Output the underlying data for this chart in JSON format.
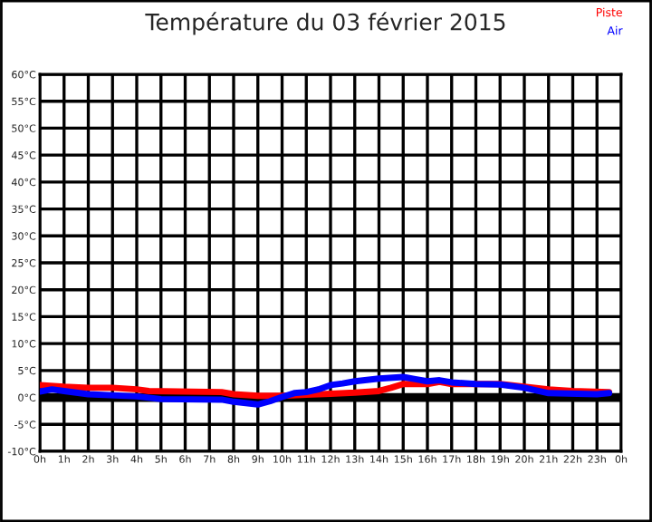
{
  "chart_data": {
    "type": "line",
    "title": "Température du 03 février 2015",
    "xlim": [
      "2015-02-03T00:00",
      "2015-02-04T00:00"
    ],
    "xticks": [
      {
        "value": "2015-02-03T00:00",
        "label": "0h"
      },
      {
        "value": "2015-02-03T01:00",
        "label": "1h"
      },
      {
        "value": "2015-02-03T02:00",
        "label": "2h"
      },
      {
        "value": "2015-02-03T03:00",
        "label": "3h"
      },
      {
        "value": "2015-02-03T04:00",
        "label": "4h"
      },
      {
        "value": "2015-02-03T05:00",
        "label": "5h"
      },
      {
        "value": "2015-02-03T06:00",
        "label": "6h"
      },
      {
        "value": "2015-02-03T07:00",
        "label": "7h"
      },
      {
        "value": "2015-02-03T08:00",
        "label": "8h"
      },
      {
        "value": "2015-02-03T09:00",
        "label": "9h"
      },
      {
        "value": "2015-02-03T10:00",
        "label": "10h"
      },
      {
        "value": "2015-02-03T11:00",
        "label": "11h"
      },
      {
        "value": "2015-02-03T12:00",
        "label": "12h"
      },
      {
        "value": "2015-02-03T13:00",
        "label": "13h"
      },
      {
        "value": "2015-02-03T14:00",
        "label": "14h"
      },
      {
        "value": "2015-02-03T15:00",
        "label": "15h"
      },
      {
        "value": "2015-02-03T16:00",
        "label": "16h"
      },
      {
        "value": "2015-02-03T17:00",
        "label": "17h"
      },
      {
        "value": "2015-02-03T18:00",
        "label": "18h"
      },
      {
        "value": "2015-02-03T19:00",
        "label": "19h"
      },
      {
        "value": "2015-02-03T20:00",
        "label": "20h"
      },
      {
        "value": "2015-02-03T21:00",
        "label": "21h"
      },
      {
        "value": "2015-02-03T22:00",
        "label": "22h"
      },
      {
        "value": "2015-02-03T23:00",
        "label": "23h"
      },
      {
        "value": "2015-02-04T00:00",
        "label": "0h"
      }
    ],
    "ylim": [
      -10,
      60
    ],
    "yticks": [
      {
        "value": -10,
        "label": "-10°C"
      },
      {
        "value": -5,
        "label": "-5°C"
      },
      {
        "value": 0,
        "label": "0°C"
      },
      {
        "value": 5,
        "label": "5°C"
      },
      {
        "value": 10,
        "label": "10°C"
      },
      {
        "value": 15,
        "label": "15°C"
      },
      {
        "value": 20,
        "label": "20°C"
      },
      {
        "value": 25,
        "label": "25°C"
      },
      {
        "value": 30,
        "label": "30°C"
      },
      {
        "value": 35,
        "label": "35°C"
      },
      {
        "value": 40,
        "label": "40°C"
      },
      {
        "value": 45,
        "label": "45°C"
      },
      {
        "value": 50,
        "label": "50°C"
      },
      {
        "value": 55,
        "label": "55°C"
      },
      {
        "value": 60,
        "label": "60°C"
      }
    ],
    "grid": true,
    "legend": "top right",
    "marker": "none",
    "line_style": "solid",
    "ref_lines": [
      {
        "axis": "y",
        "value": 0,
        "color": "#000000"
      }
    ],
    "series": [
      {
        "name": "Piste",
        "color": "#ff0000",
        "x": [
          "2015-02-03T00:00",
          "2015-02-03T01:00",
          "2015-02-03T02:00",
          "2015-02-03T03:00",
          "2015-02-03T04:00",
          "2015-02-03T04:30",
          "2015-02-03T07:30",
          "2015-02-03T08:00",
          "2015-02-03T09:00",
          "2015-02-03T10:00",
          "2015-02-03T11:00",
          "2015-02-03T12:00",
          "2015-02-03T13:00",
          "2015-02-03T14:00",
          "2015-02-03T14:30",
          "2015-02-03T15:00",
          "2015-02-03T16:00",
          "2015-02-03T16:30",
          "2015-02-03T17:00",
          "2015-02-03T19:00",
          "2015-02-03T20:00",
          "2015-02-03T21:00",
          "2015-02-03T22:00",
          "2015-02-03T23:30"
        ],
        "values": [
          2.3,
          2,
          1.8,
          1.8,
          1.5,
          1.2,
          1.0,
          0.6,
          0.3,
          0.3,
          0.5,
          0.7,
          0.9,
          1.2,
          1.8,
          2.5,
          2.5,
          2.9,
          2.5,
          2.5,
          2,
          1.5,
          1.2,
          1.0
        ]
      },
      {
        "name": "Air",
        "color": "#0000ff",
        "x": [
          "2015-02-03T00:00",
          "2015-02-03T00:30",
          "2015-02-03T01:00",
          "2015-02-03T02:00",
          "2015-02-03T04:00",
          "2015-02-03T05:00",
          "2015-02-03T07:30",
          "2015-02-03T08:00",
          "2015-02-03T09:00",
          "2015-02-03T09:30",
          "2015-02-03T10:00",
          "2015-02-03T10:30",
          "2015-02-03T11:00",
          "2015-02-03T11:30",
          "2015-02-03T12:00",
          "2015-02-03T12:30",
          "2015-02-03T13:00",
          "2015-02-03T14:00",
          "2015-02-03T15:00",
          "2015-02-03T15:30",
          "2015-02-03T16:00",
          "2015-02-03T16:30",
          "2015-02-03T17:00",
          "2015-02-03T18:00",
          "2015-02-03T19:00",
          "2015-02-03T20:00",
          "2015-02-03T20:30",
          "2015-02-03T21:00",
          "2015-02-03T23:00",
          "2015-02-03T23:30"
        ],
        "values": [
          1.1,
          1.5,
          1.2,
          0.6,
          0.2,
          -0.3,
          -0.4,
          -0.8,
          -1.3,
          -0.7,
          0.1,
          0.8,
          1.0,
          1.5,
          2.3,
          2.6,
          3,
          3.5,
          3.8,
          3.4,
          3,
          3.2,
          2.8,
          2.5,
          2.4,
          1.8,
          1.3,
          0.8,
          0.6,
          0.8
        ]
      }
    ]
  }
}
